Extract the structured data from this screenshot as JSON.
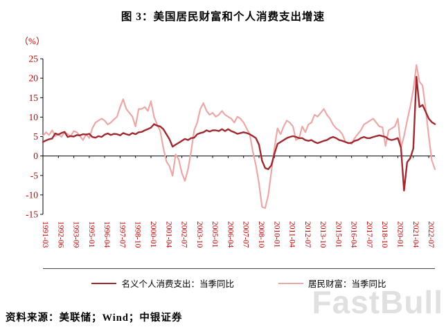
{
  "page": {
    "title": "图 3：美国居民财富和个人消费支出增速",
    "source_note": "资料来源：美联储；Wind；中银证券",
    "watermark": "FastBull"
  },
  "chart_data": {
    "type": "line",
    "title": "图 3：美国居民财富和个人消费支出增速",
    "ylabel": "（%）",
    "xlabel": "",
    "ylim": [
      -15,
      25
    ],
    "yticks": [
      25,
      20,
      15,
      10,
      5,
      0,
      -5,
      -10,
      -15
    ],
    "grid": false,
    "legend_position": "bottom",
    "axis_label_color": "#C00000",
    "frequency": "quarterly",
    "x_start": "1991-03",
    "x_end": "2022-12",
    "x_tick_every": 5,
    "x_tick_labels": [
      "1991-03",
      "1992-06",
      "1993-09",
      "1995-01",
      "1996-04",
      "1997-07",
      "1998-10",
      "2000-01",
      "2001-04",
      "2002-07",
      "2003-10",
      "2005-01",
      "2006-04",
      "2007-07",
      "2008-10",
      "2010-01",
      "2011-04",
      "2012-07",
      "2013-10",
      "2015-01",
      "2016-04",
      "2017-07",
      "2018-10",
      "2020-01",
      "2021-04",
      "2022-07"
    ],
    "series": [
      {
        "key": "pce",
        "name": "名义个人消费支出：当季同比",
        "color": "#A0282F",
        "width": 2.4,
        "values": [
          3.6,
          4.0,
          4.3,
          4.5,
          5.8,
          5.5,
          5.9,
          6.2,
          4.9,
          5.1,
          5.0,
          5.4,
          5.3,
          5.6,
          5.5,
          5.7,
          4.9,
          4.7,
          5.1,
          4.9,
          5.5,
          5.8,
          5.4,
          5.7,
          5.6,
          5.3,
          5.9,
          5.6,
          5.4,
          5.9,
          5.6,
          6.1,
          6.2,
          6.6,
          6.9,
          7.3,
          8.2,
          7.8,
          7.6,
          6.9,
          5.6,
          4.3,
          2.4,
          2.9,
          3.4,
          3.9,
          4.4,
          4.1,
          4.6,
          4.7,
          5.6,
          5.9,
          6.1,
          6.6,
          6.3,
          6.6,
          6.6,
          6.4,
          6.9,
          6.4,
          6.9,
          6.4,
          6.1,
          5.7,
          5.9,
          6.1,
          5.9,
          5.6,
          5.1,
          4.6,
          2.9,
          -1.2,
          -3.1,
          -3.4,
          -2.4,
          0.6,
          3.1,
          3.6,
          4.1,
          4.6,
          4.9,
          5.1,
          4.9,
          4.6,
          4.6,
          4.1,
          3.9,
          4.1,
          3.6,
          3.3,
          3.6,
          3.9,
          4.1,
          4.6,
          4.9,
          4.6,
          4.1,
          3.9,
          3.6,
          3.3,
          3.4,
          3.9,
          4.1,
          4.6,
          4.9,
          4.6,
          4.6,
          4.9,
          5.1,
          5.3,
          5.1,
          4.9,
          4.3,
          4.1,
          4.3,
          4.6,
          2.1,
          -8.9,
          -1.6,
          -0.6,
          1.9,
          20.4,
          12.6,
          13.1,
          11.4,
          9.6,
          8.7,
          8.2
        ]
      },
      {
        "key": "wealth",
        "name": "居民财富：当季同比",
        "color": "#EBA8A6",
        "width": 2.2,
        "values": [
          5.2,
          6.1,
          5.4,
          6.6,
          5.1,
          5.6,
          4.9,
          6.1,
          5.6,
          5.1,
          6.4,
          6.1,
          5.1,
          4.1,
          5.6,
          4.6,
          7.1,
          8.6,
          9.1,
          9.6,
          9.1,
          8.1,
          8.6,
          9.4,
          10.1,
          12.6,
          14.6,
          12.1,
          11.1,
          10.1,
          7.6,
          12.1,
          12.1,
          12.6,
          11.6,
          14.1,
          10.1,
          8.1,
          6.4,
          2.1,
          -1.4,
          -2.6,
          -5.1,
          0.4,
          -0.9,
          -4.4,
          -6.4,
          -3.4,
          1.1,
          6.6,
          8.6,
          12.1,
          13.6,
          11.6,
          10.6,
          11.1,
          10.1,
          10.6,
          11.6,
          10.6,
          10.1,
          9.6,
          8.6,
          10.1,
          9.6,
          8.6,
          7.1,
          5.6,
          1.1,
          -2.4,
          -7.1,
          -13.1,
          -13.4,
          -10.1,
          -4.1,
          2.1,
          7.1,
          5.6,
          7.6,
          9.1,
          8.6,
          7.6,
          4.1,
          4.6,
          7.6,
          6.1,
          8.1,
          8.6,
          10.6,
          10.1,
          11.1,
          12.1,
          10.6,
          9.6,
          8.1,
          7.1,
          6.6,
          5.6,
          3.6,
          3.4,
          3.1,
          4.6,
          5.6,
          6.6,
          8.1,
          8.6,
          9.1,
          9.6,
          8.6,
          7.6,
          7.4,
          2.6,
          6.6,
          7.1,
          7.6,
          9.6,
          2.1,
          5.1,
          9.1,
          12.6,
          17.1,
          23.4,
          19.1,
          18.1,
          12.1,
          5.1,
          -1.1,
          -3.4
        ]
      }
    ]
  }
}
